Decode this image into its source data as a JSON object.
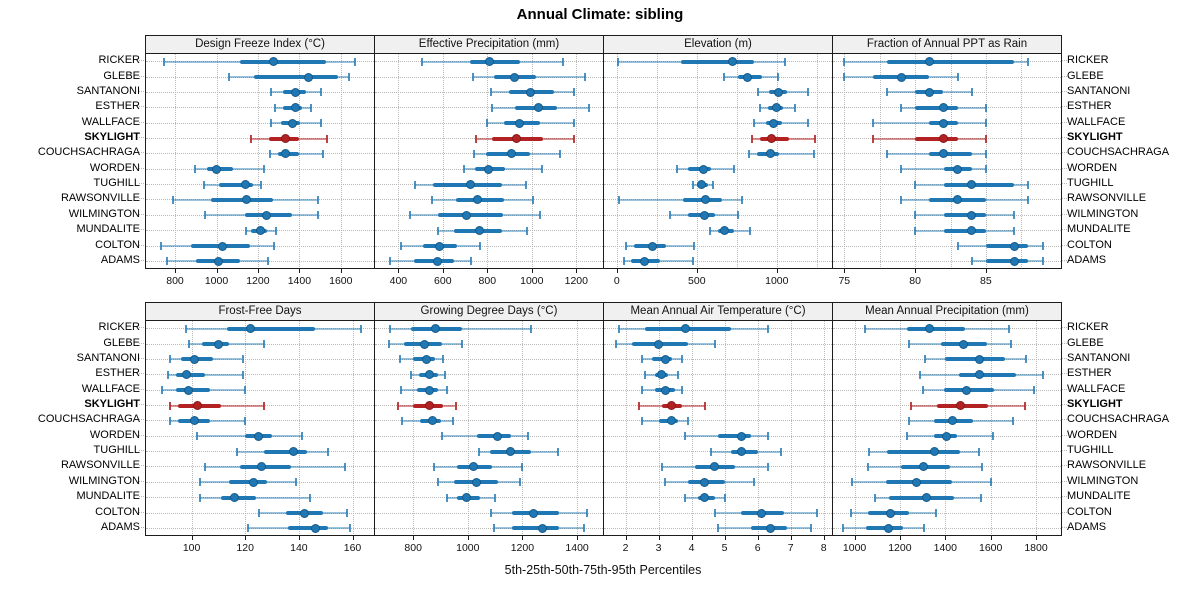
{
  "chart_data": {
    "type": "scatter",
    "subtype": "trellis percentile interval dot plot (5-25-50-75-95)",
    "title": "Annual Climate: sibling",
    "xlabel": "5th-25th-50th-75th-95th Percentiles",
    "percentiles": [
      5,
      25,
      50,
      75,
      95
    ],
    "legend": "none",
    "gridlines": "dotted",
    "grid_layout": [
      2,
      4
    ],
    "sites": [
      "RICKER",
      "GLEBE",
      "SANTANONI",
      "ESTHER",
      "WALLFACE",
      "SKYLIGHT",
      "COUCHSACHRAGA",
      "WORDEN",
      "TUGHILL",
      "RAWSONVILLE",
      "WILMINGTON",
      "MUNDALITE",
      "COLTON",
      "ADAMS"
    ],
    "highlight_site": "SKYLIGHT",
    "colors": {
      "normal": "#1f77b4",
      "normal_light": "rgba(31,119,180,0.45)",
      "normal_cap": "rgba(31,119,180,0.8)",
      "highlight": "#b22222",
      "highlight_light": "rgba(178,34,34,0.5)",
      "highlight_cap": "rgba(178,34,34,0.85)",
      "grid": "#b9b9b9",
      "header_bg": "#f0f0f0",
      "border": "#1c1c1c"
    },
    "panels": [
      {
        "title": "Design Freeze Index (°C)",
        "ticks": [
          800,
          1000,
          1200,
          1400,
          1600
        ],
        "xlim": [
          660,
          1760
        ],
        "values": [
          [
            745,
            1115,
            1275,
            1530,
            1670
          ],
          [
            1060,
            1180,
            1445,
            1585,
            1640
          ],
          [
            1265,
            1320,
            1380,
            1430,
            1505
          ],
          [
            1280,
            1320,
            1380,
            1415,
            1455
          ],
          [
            1265,
            1310,
            1365,
            1405,
            1505
          ],
          [
            1165,
            1255,
            1335,
            1400,
            1535
          ],
          [
            1260,
            1295,
            1335,
            1400,
            1515
          ],
          [
            895,
            955,
            1000,
            1080,
            1230
          ],
          [
            940,
            1010,
            1140,
            1175,
            1215
          ],
          [
            790,
            975,
            1145,
            1275,
            1490
          ],
          [
            945,
            1135,
            1240,
            1365,
            1490
          ],
          [
            1140,
            1165,
            1210,
            1245,
            1285
          ],
          [
            730,
            875,
            1030,
            1160,
            1275
          ],
          [
            760,
            900,
            1010,
            1115,
            1250
          ]
        ]
      },
      {
        "title": "Effective Precipitation (mm)",
        "ticks": [
          400,
          600,
          800,
          1000,
          1200
        ],
        "xlim": [
          295,
          1320
        ],
        "values": [
          [
            505,
            720,
            810,
            945,
            1140
          ],
          [
            735,
            830,
            920,
            1020,
            1240
          ],
          [
            815,
            895,
            995,
            1100,
            1190
          ],
          [
            820,
            925,
            1030,
            1115,
            1255
          ],
          [
            800,
            875,
            945,
            1035,
            1190
          ],
          [
            750,
            820,
            930,
            1050,
            1190
          ],
          [
            740,
            795,
            910,
            990,
            1125
          ],
          [
            695,
            745,
            805,
            880,
            1045
          ],
          [
            475,
            555,
            725,
            865,
            975
          ],
          [
            550,
            660,
            755,
            875,
            1005
          ],
          [
            450,
            580,
            705,
            870,
            1035
          ],
          [
            580,
            650,
            765,
            865,
            980
          ],
          [
            410,
            510,
            585,
            665,
            765
          ],
          [
            360,
            470,
            575,
            650,
            725
          ]
        ]
      },
      {
        "title": "Elevation (m)",
        "ticks": [
          0,
          500,
          1000
        ],
        "grid_ticks": [
          0,
          250,
          500,
          750,
          1000,
          1250
        ],
        "xlim": [
          -80,
          1345
        ],
        "values": [
          [
            5,
            400,
            725,
            855,
            1050
          ],
          [
            670,
            755,
            815,
            910,
            1005
          ],
          [
            885,
            950,
            1010,
            1065,
            1195
          ],
          [
            895,
            945,
            1000,
            1040,
            1115
          ],
          [
            860,
            930,
            980,
            1030,
            1195
          ],
          [
            845,
            895,
            965,
            1075,
            1240
          ],
          [
            825,
            875,
            960,
            1015,
            1230
          ],
          [
            375,
            445,
            540,
            590,
            730
          ],
          [
            475,
            500,
            530,
            570,
            600
          ],
          [
            15,
            415,
            555,
            655,
            785
          ],
          [
            330,
            445,
            550,
            615,
            755
          ],
          [
            580,
            630,
            670,
            735,
            830
          ],
          [
            55,
            105,
            220,
            305,
            480
          ],
          [
            45,
            90,
            175,
            270,
            475
          ]
        ]
      },
      {
        "title": "Fraction of Annual PPT as Rain",
        "ticks": [
          75,
          80,
          85
        ],
        "grid_ticks": [
          75,
          77.5,
          80,
          82.5,
          85,
          87.5
        ],
        "xlim": [
          74.2,
          90.3
        ],
        "values": [
          [
            75,
            78,
            81,
            87,
            88
          ],
          [
            75,
            77,
            79,
            81,
            83
          ],
          [
            78,
            80,
            81,
            82,
            84
          ],
          [
            79,
            80,
            82,
            83,
            85
          ],
          [
            77,
            81,
            82,
            83,
            85
          ],
          [
            77,
            80,
            82,
            83,
            85
          ],
          [
            78,
            81,
            82,
            84,
            85
          ],
          [
            79,
            82,
            83,
            84,
            85
          ],
          [
            80,
            82,
            84,
            87,
            88
          ],
          [
            79,
            81,
            83,
            85,
            88
          ],
          [
            80,
            82,
            84,
            85,
            87
          ],
          [
            80,
            82,
            84,
            85,
            87
          ],
          [
            83,
            85,
            87,
            88,
            89
          ],
          [
            84,
            85,
            87,
            88,
            89
          ]
        ]
      },
      {
        "title": "Frost-Free Days",
        "ticks": [
          100,
          120,
          140,
          160
        ],
        "xlim": [
          83,
          168
        ],
        "values": [
          [
            98,
            113,
            122,
            146,
            163
          ],
          [
            99,
            104,
            110,
            114,
            127
          ],
          [
            92,
            96,
            101,
            108,
            119
          ],
          [
            91,
            94,
            98,
            105,
            119
          ],
          [
            89,
            94,
            99,
            107,
            120
          ],
          [
            92,
            95,
            102,
            111,
            127
          ],
          [
            92,
            95,
            101,
            107,
            120
          ],
          [
            102,
            120,
            125,
            130,
            141
          ],
          [
            117,
            127,
            138,
            143,
            151
          ],
          [
            105,
            118,
            126,
            137,
            157
          ],
          [
            103,
            114,
            123,
            128,
            139
          ],
          [
            103,
            111,
            116,
            124,
            144
          ],
          [
            125,
            135,
            142,
            149,
            158
          ],
          [
            121,
            136,
            146,
            151,
            159
          ]
        ]
      },
      {
        "title": "Growing Degree Days (°C)",
        "ticks": [
          800,
          1000,
          1200,
          1400
        ],
        "xlim": [
          660,
          1495
        ],
        "values": [
          [
            715,
            790,
            880,
            980,
            1230
          ],
          [
            710,
            765,
            840,
            905,
            980
          ],
          [
            750,
            800,
            850,
            880,
            910
          ],
          [
            790,
            820,
            858,
            890,
            915
          ],
          [
            755,
            812,
            858,
            890,
            925
          ],
          [
            745,
            800,
            860,
            910,
            955
          ],
          [
            760,
            825,
            870,
            900,
            945
          ],
          [
            905,
            1035,
            1110,
            1160,
            1220
          ],
          [
            1040,
            1080,
            1155,
            1230,
            1330
          ],
          [
            875,
            960,
            1020,
            1090,
            1200
          ],
          [
            890,
            950,
            1030,
            1110,
            1190
          ],
          [
            925,
            960,
            995,
            1045,
            1100
          ],
          [
            1085,
            1160,
            1240,
            1335,
            1435
          ],
          [
            1095,
            1160,
            1275,
            1335,
            1425
          ]
        ]
      },
      {
        "title": "Mean Annual Air Temperature (°C)",
        "ticks": [
          2,
          3,
          4,
          5,
          6,
          7,
          8
        ],
        "xlim": [
          1.35,
          8.25
        ],
        "values": [
          [
            1.8,
            2.6,
            3.8,
            5.2,
            6.3
          ],
          [
            1.7,
            2.2,
            3.0,
            3.9,
            4.7
          ],
          [
            2.5,
            2.8,
            3.2,
            3.4,
            3.7
          ],
          [
            2.6,
            2.9,
            3.1,
            3.3,
            3.6
          ],
          [
            2.5,
            2.9,
            3.2,
            3.5,
            3.7
          ],
          [
            2.4,
            3.1,
            3.4,
            3.7,
            4.4
          ],
          [
            2.5,
            3.0,
            3.4,
            3.6,
            3.9
          ],
          [
            3.8,
            4.8,
            5.5,
            5.8,
            6.3
          ],
          [
            4.6,
            5.2,
            5.5,
            6.0,
            6.7
          ],
          [
            3.1,
            4.1,
            4.7,
            5.3,
            6.3
          ],
          [
            3.2,
            3.9,
            4.4,
            5.0,
            5.9
          ],
          [
            3.8,
            4.2,
            4.4,
            4.7,
            5.0
          ],
          [
            4.7,
            5.5,
            6.1,
            6.8,
            7.8
          ],
          [
            4.8,
            5.8,
            6.4,
            6.9,
            7.6
          ]
        ]
      },
      {
        "title": "Mean Annual Precipitation (mm)",
        "ticks": [
          1000,
          1200,
          1400,
          1600,
          1800
        ],
        "xlim": [
          905,
          1910
        ],
        "values": [
          [
            1045,
            1230,
            1330,
            1485,
            1680
          ],
          [
            1240,
            1380,
            1480,
            1585,
            1690
          ],
          [
            1310,
            1400,
            1550,
            1665,
            1755
          ],
          [
            1290,
            1460,
            1550,
            1710,
            1830
          ],
          [
            1300,
            1395,
            1495,
            1615,
            1790
          ],
          [
            1250,
            1365,
            1465,
            1590,
            1750
          ],
          [
            1240,
            1350,
            1430,
            1520,
            1700
          ],
          [
            1230,
            1350,
            1405,
            1450,
            1610
          ],
          [
            1065,
            1145,
            1350,
            1465,
            1550
          ],
          [
            1060,
            1205,
            1305,
            1420,
            1560
          ],
          [
            990,
            1140,
            1275,
            1430,
            1600
          ],
          [
            1090,
            1150,
            1315,
            1440,
            1555
          ],
          [
            985,
            1060,
            1160,
            1240,
            1360
          ],
          [
            950,
            1050,
            1150,
            1215,
            1305
          ]
        ]
      }
    ]
  }
}
